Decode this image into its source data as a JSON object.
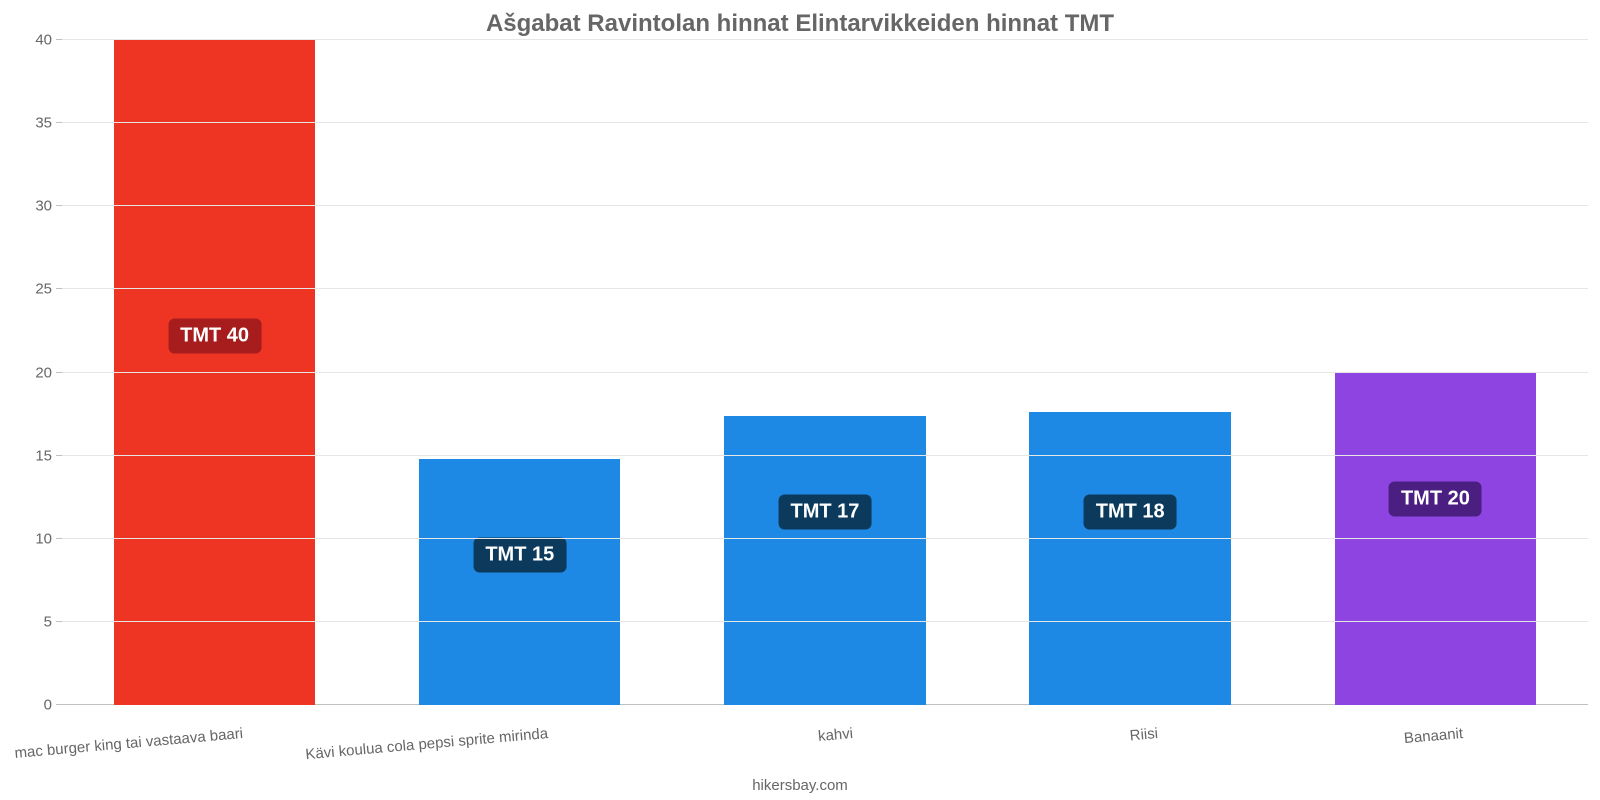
{
  "chart": {
    "type": "bar",
    "title": "Ašgabat Ravintolan hinnat Elintarvikkeiden hinnat TMT",
    "title_color": "#666666",
    "title_fontsize": 24,
    "title_fontweight": 700,
    "credit": "hikersbay.com",
    "credit_color": "#666666",
    "credit_fontsize": 15,
    "background_color": "#ffffff",
    "plot": {
      "ylim_min": 0,
      "ylim_max": 40,
      "ytick_step": 5,
      "yticks": [
        "0",
        "5",
        "10",
        "15",
        "20",
        "25",
        "30",
        "35",
        "40"
      ],
      "ytick_color": "#666666",
      "ytick_fontsize": 15,
      "gridline_color": "#e6e6e6",
      "axis_line_color": "#c0c0c0",
      "tickmark_color": "#c0c0c0",
      "bar_width_pct": 13.2,
      "slot_width_pct": 20,
      "value_label_fontsize": 20,
      "value_label_prefix": "TMT ",
      "xlabel_color": "#666666",
      "xlabel_fontsize": 15,
      "xlabel_rotation_deg": -5
    },
    "series": [
      {
        "category": "mac burger king tai vastaava baari",
        "value": 40,
        "display": "TMT 40",
        "bar_color": "#ee3524",
        "label_bg": "#a71c1c",
        "label_y_frac": 0.555
      },
      {
        "category": "Kävi koulua cola pepsi sprite mirinda",
        "value": 14.8,
        "display": "TMT 15",
        "bar_color": "#1e88e5",
        "label_bg": "#0b3a5c",
        "label_y_frac": 0.225
      },
      {
        "category": "kahvi",
        "value": 17.4,
        "display": "TMT 17",
        "bar_color": "#1e88e5",
        "label_bg": "#0b3a5c",
        "label_y_frac": 0.29
      },
      {
        "category": "Riisi",
        "value": 17.6,
        "display": "TMT 18",
        "bar_color": "#1e88e5",
        "label_bg": "#0b3a5c",
        "label_y_frac": 0.29
      },
      {
        "category": "Banaanit",
        "value": 20,
        "display": "TMT 20",
        "bar_color": "#8e44e0",
        "label_bg": "#4b1f82",
        "label_y_frac": 0.31
      }
    ]
  }
}
